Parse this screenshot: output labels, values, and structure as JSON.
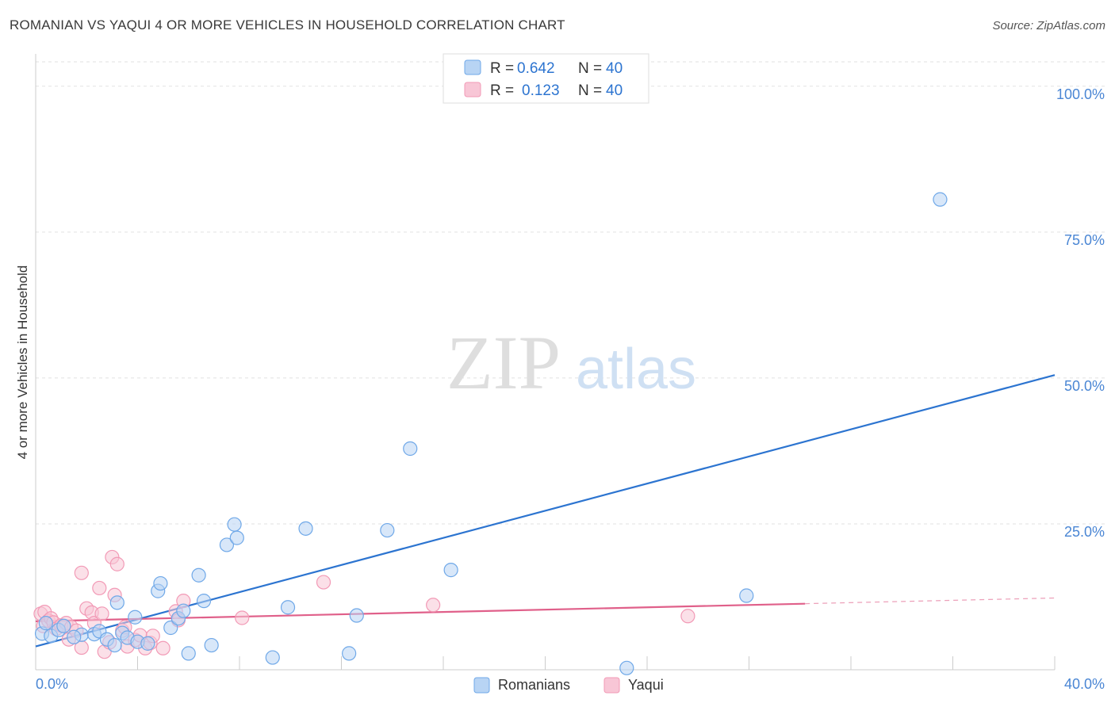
{
  "chart_data": {
    "type": "scatter",
    "title": "ROMANIAN VS YAQUI 4 OR MORE VEHICLES IN HOUSEHOLD CORRELATION CHART",
    "source": "Source: ZipAtlas.com",
    "xlabel": "",
    "ylabel": "4 or more Vehicles in Household",
    "xlim": [
      0,
      40
    ],
    "ylim": [
      0,
      105
    ],
    "x_tick_labels": [
      "0.0%",
      "40.0%"
    ],
    "y_ticks": [
      25,
      50,
      75,
      100
    ],
    "y_tick_labels": [
      "25.0%",
      "50.0%",
      "75.0%",
      "100.0%"
    ],
    "grid": true,
    "watermark": {
      "zip": "ZIP",
      "atlas": "atlas"
    },
    "legend": [
      {
        "r_label": "R =",
        "r_value": "0.642",
        "n_label": "N =",
        "n_value": "40"
      },
      {
        "r_label": "R =",
        "r_value": "0.123",
        "n_label": "N =",
        "n_value": "40"
      }
    ],
    "series": [
      {
        "name": "Romanians",
        "color": "#6fa8e8",
        "fill": "#b8d4f4",
        "line_color": "#2c74d0",
        "trend": {
          "x": [
            0,
            40
          ],
          "y": [
            4.0,
            50.5
          ]
        },
        "points": [
          {
            "x": 0.25,
            "y": 6.2
          },
          {
            "x": 0.6,
            "y": 5.8
          },
          {
            "x": 0.9,
            "y": 6.8
          },
          {
            "x": 1.1,
            "y": 7.5
          },
          {
            "x": 1.8,
            "y": 6.0
          },
          {
            "x": 2.3,
            "y": 6.1
          },
          {
            "x": 2.5,
            "y": 6.6
          },
          {
            "x": 2.8,
            "y": 5.2
          },
          {
            "x": 3.1,
            "y": 4.2
          },
          {
            "x": 3.2,
            "y": 11.5
          },
          {
            "x": 3.4,
            "y": 6.3
          },
          {
            "x": 3.6,
            "y": 5.5
          },
          {
            "x": 3.9,
            "y": 9.0
          },
          {
            "x": 4.0,
            "y": 4.8
          },
          {
            "x": 4.4,
            "y": 4.5
          },
          {
            "x": 4.8,
            "y": 13.5
          },
          {
            "x": 4.9,
            "y": 14.8
          },
          {
            "x": 5.3,
            "y": 7.2
          },
          {
            "x": 5.6,
            "y": 8.8
          },
          {
            "x": 5.8,
            "y": 10.1
          },
          {
            "x": 6.0,
            "y": 2.8
          },
          {
            "x": 6.4,
            "y": 16.2
          },
          {
            "x": 6.6,
            "y": 11.8
          },
          {
            "x": 6.9,
            "y": 4.2
          },
          {
            "x": 7.5,
            "y": 21.4
          },
          {
            "x": 7.8,
            "y": 24.9
          },
          {
            "x": 7.9,
            "y": 22.6
          },
          {
            "x": 9.3,
            "y": 2.1
          },
          {
            "x": 9.9,
            "y": 10.7
          },
          {
            "x": 10.6,
            "y": 24.2
          },
          {
            "x": 12.3,
            "y": 2.8
          },
          {
            "x": 12.6,
            "y": 9.3
          },
          {
            "x": 13.8,
            "y": 23.9
          },
          {
            "x": 14.7,
            "y": 37.9
          },
          {
            "x": 16.3,
            "y": 17.1
          },
          {
            "x": 23.2,
            "y": 0.3
          },
          {
            "x": 27.9,
            "y": 12.7
          },
          {
            "x": 35.5,
            "y": 80.6
          },
          {
            "x": 0.4,
            "y": 8.0
          },
          {
            "x": 1.5,
            "y": 5.6
          }
        ]
      },
      {
        "name": "Yaqui",
        "color": "#f29ab6",
        "fill": "#f8c6d6",
        "line_color": "#e0608a",
        "trend": {
          "x": [
            0,
            40
          ],
          "y": [
            8.3,
            12.3
          ],
          "solid_until": 30.2
        },
        "points": [
          {
            "x": 0.2,
            "y": 9.6
          },
          {
            "x": 0.3,
            "y": 7.5
          },
          {
            "x": 0.35,
            "y": 9.9
          },
          {
            "x": 0.5,
            "y": 8.4
          },
          {
            "x": 0.6,
            "y": 8.8
          },
          {
            "x": 0.7,
            "y": 8.1
          },
          {
            "x": 0.8,
            "y": 7.0
          },
          {
            "x": 1.0,
            "y": 7.6
          },
          {
            "x": 1.2,
            "y": 8.0
          },
          {
            "x": 1.3,
            "y": 5.2
          },
          {
            "x": 1.4,
            "y": 7.3
          },
          {
            "x": 1.6,
            "y": 6.7
          },
          {
            "x": 1.8,
            "y": 3.8
          },
          {
            "x": 1.8,
            "y": 16.6
          },
          {
            "x": 2.0,
            "y": 10.5
          },
          {
            "x": 2.2,
            "y": 9.8
          },
          {
            "x": 2.3,
            "y": 8.0
          },
          {
            "x": 2.5,
            "y": 14.0
          },
          {
            "x": 2.6,
            "y": 9.6
          },
          {
            "x": 2.7,
            "y": 3.1
          },
          {
            "x": 2.9,
            "y": 4.7
          },
          {
            "x": 3.0,
            "y": 19.3
          },
          {
            "x": 3.1,
            "y": 12.8
          },
          {
            "x": 3.2,
            "y": 18.1
          },
          {
            "x": 3.4,
            "y": 6.7
          },
          {
            "x": 3.5,
            "y": 7.3
          },
          {
            "x": 3.6,
            "y": 4.0
          },
          {
            "x": 3.9,
            "y": 5.1
          },
          {
            "x": 4.1,
            "y": 5.9
          },
          {
            "x": 4.3,
            "y": 3.7
          },
          {
            "x": 4.5,
            "y": 4.6
          },
          {
            "x": 4.6,
            "y": 5.8
          },
          {
            "x": 5.0,
            "y": 3.7
          },
          {
            "x": 5.5,
            "y": 10.0
          },
          {
            "x": 5.6,
            "y": 8.5
          },
          {
            "x": 5.8,
            "y": 11.8
          },
          {
            "x": 8.1,
            "y": 8.9
          },
          {
            "x": 11.3,
            "y": 15.0
          },
          {
            "x": 15.6,
            "y": 11.1
          },
          {
            "x": 25.6,
            "y": 9.2
          }
        ]
      }
    ]
  }
}
